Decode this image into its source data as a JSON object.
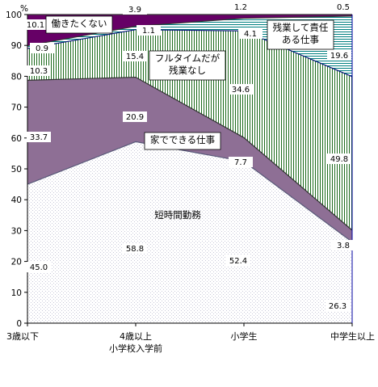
{
  "chart_data": {
    "type": "area",
    "stacked": true,
    "title": "",
    "xlabel": "",
    "ylabel": "",
    "ylim": [
      0,
      100
    ],
    "yticks": [
      0,
      10,
      20,
      30,
      40,
      50,
      60,
      70,
      80,
      90,
      100
    ],
    "y_unit": "%",
    "grid": false,
    "categories": [
      "3歳以下",
      "4歳以上\n小学校入学前",
      "小学生",
      "中学生以上"
    ],
    "series": [
      {
        "name": "短時間勤務",
        "values": [
          45.0,
          58.8,
          52.4,
          26.3
        ],
        "color": "#c8c8d8",
        "pattern": "dots"
      },
      {
        "name": "家でできる仕事",
        "values": [
          33.7,
          20.9,
          7.7,
          3.8
        ],
        "color": "#8e6f95",
        "pattern": "solid"
      },
      {
        "name": "フルタイムだが残業なし",
        "values": [
          10.3,
          15.4,
          34.6,
          49.8
        ],
        "color": "#1e6b1e",
        "pattern": "vlines"
      },
      {
        "name": "残業して責任ある仕事",
        "values": [
          0.9,
          1.1,
          4.1,
          19.6
        ],
        "color": "#008080",
        "pattern": "hlines"
      },
      {
        "name": "働きたくない",
        "values": [
          10.1,
          3.9,
          1.2,
          0.5
        ],
        "color": "#660066",
        "pattern": "solid"
      }
    ]
  }
}
